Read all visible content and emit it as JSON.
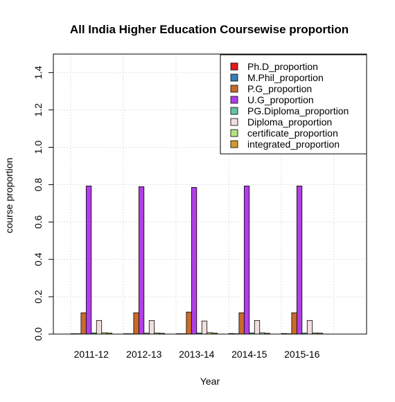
{
  "chart_data": {
    "type": "bar",
    "title": "All India Higher Education Coursewise proportion",
    "xlabel": "Year",
    "ylabel": "course proportion",
    "ylim": [
      0,
      1.5
    ],
    "y_ticks": [
      "0.0",
      "0.2",
      "0.4",
      "0.6",
      "0.8",
      "1.0",
      "1.2",
      "1.4"
    ],
    "grid": true,
    "legend_position": "top-right",
    "categories": [
      "2011-12",
      "2012-13",
      "2013-14",
      "2014-15",
      "2015-16"
    ],
    "series": [
      {
        "name": "Ph.D_proportion",
        "color": "#e41a1c",
        "values": [
          0.002,
          0.002,
          0.002,
          0.003,
          0.003
        ]
      },
      {
        "name": "M.Phil_proportion",
        "color": "#377eb8",
        "values": [
          0.001,
          0.001,
          0.001,
          0.001,
          0.001
        ]
      },
      {
        "name": "P.G_proportion",
        "color": "#cc6a2a",
        "values": [
          0.114,
          0.114,
          0.118,
          0.114,
          0.114
        ]
      },
      {
        "name": "U.G_proportion",
        "color": "#b13fe8",
        "values": [
          0.793,
          0.789,
          0.785,
          0.793,
          0.793
        ]
      },
      {
        "name": "PG.Diploma_proportion",
        "color": "#66c2a5",
        "values": [
          0.006,
          0.005,
          0.006,
          0.006,
          0.005
        ]
      },
      {
        "name": "Diploma_proportion",
        "color": "#f2dede",
        "values": [
          0.073,
          0.073,
          0.07,
          0.073,
          0.073
        ]
      },
      {
        "name": "certificate_proportion",
        "color": "#b8e186",
        "values": [
          0.007,
          0.006,
          0.008,
          0.007,
          0.006
        ]
      },
      {
        "name": "integrated_proportion",
        "color": "#d19a2b",
        "values": [
          0.005,
          0.004,
          0.005,
          0.004,
          0.005
        ]
      }
    ]
  }
}
